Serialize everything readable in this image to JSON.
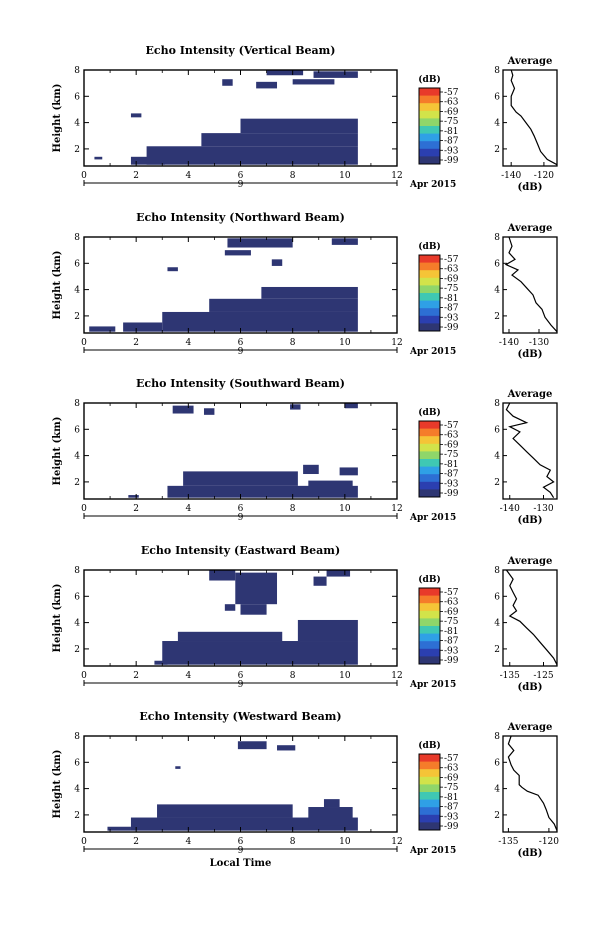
{
  "chart_data": [
    {
      "type": "heatmap",
      "title": "Echo Intensity (Vertical Beam)",
      "ylabel": "Height (km)",
      "x_ticks": [
        "0",
        "2",
        "4",
        "6",
        "8",
        "10",
        "12"
      ],
      "y_ticks": [
        "2",
        "4",
        "6",
        "8"
      ],
      "date_tick": "9",
      "date_label": "Apr 2015",
      "xlim": [
        0,
        12
      ],
      "ylim": [
        0.7,
        8.0
      ],
      "colorbar": {
        "title": "(dB)",
        "ticks": [
          "-57",
          "-63",
          "-69",
          "-75",
          "-81",
          "-87",
          "-93",
          "-99"
        ]
      },
      "cells": [
        {
          "x": [
            0.4,
            0.7
          ],
          "y": [
            1.2,
            1.4
          ]
        },
        {
          "x": [
            1.8,
            3.1
          ],
          "y": [
            0.8,
            1.4
          ]
        },
        {
          "x": [
            2.4,
            10.5
          ],
          "y": [
            0.8,
            2.2
          ]
        },
        {
          "x": [
            4.5,
            10.5
          ],
          "y": [
            2.2,
            3.2
          ]
        },
        {
          "x": [
            6.0,
            10.5
          ],
          "y": [
            3.2,
            4.3
          ]
        },
        {
          "x": [
            1.8,
            2.2
          ],
          "y": [
            4.4,
            4.7
          ]
        },
        {
          "x": [
            5.3,
            5.7
          ],
          "y": [
            6.8,
            7.3
          ]
        },
        {
          "x": [
            6.6,
            7.4
          ],
          "y": [
            6.6,
            7.1
          ]
        },
        {
          "x": [
            7.0,
            8.4
          ],
          "y": [
            7.6,
            8.0
          ]
        },
        {
          "x": [
            8.8,
            10.5
          ],
          "y": [
            7.4,
            7.9
          ]
        },
        {
          "x": [
            8.0,
            9.6
          ],
          "y": [
            6.9,
            7.3
          ]
        }
      ],
      "average": {
        "title": "Average",
        "xlabel": "(dB)",
        "x_ticks": [
          -140,
          -120
        ],
        "y_ticks": [
          2,
          4,
          6,
          8
        ],
        "xlim": [
          -145,
          -112
        ],
        "ylim": [
          0.7,
          8.0
        ],
        "points": [
          [
            -112,
            0.8
          ],
          [
            -118,
            1.2
          ],
          [
            -122,
            1.8
          ],
          [
            -124,
            2.4
          ],
          [
            -126,
            3.0
          ],
          [
            -128,
            3.5
          ],
          [
            -131,
            4.0
          ],
          [
            -134,
            4.5
          ],
          [
            -137,
            4.8
          ],
          [
            -140,
            5.3
          ],
          [
            -140,
            6.0
          ],
          [
            -138,
            6.6
          ],
          [
            -140,
            7.2
          ],
          [
            -139,
            7.6
          ],
          [
            -140,
            8.0
          ]
        ]
      }
    },
    {
      "type": "heatmap",
      "title": "Echo Intensity (Northward Beam)",
      "ylabel": "Height (km)",
      "x_ticks": [
        "0",
        "2",
        "4",
        "6",
        "8",
        "10",
        "12"
      ],
      "y_ticks": [
        "2",
        "4",
        "6",
        "8"
      ],
      "date_tick": "9",
      "date_label": "Apr 2015",
      "xlim": [
        0,
        12
      ],
      "ylim": [
        0.7,
        8.0
      ],
      "colorbar": {
        "title": "(dB)",
        "ticks": [
          "-57",
          "-63",
          "-69",
          "-75",
          "-81",
          "-87",
          "-93",
          "-99"
        ]
      },
      "cells": [
        {
          "x": [
            0.2,
            1.2
          ],
          "y": [
            0.8,
            1.2
          ]
        },
        {
          "x": [
            1.5,
            3.0
          ],
          "y": [
            0.8,
            1.5
          ]
        },
        {
          "x": [
            3.0,
            10.5
          ],
          "y": [
            0.8,
            2.3
          ]
        },
        {
          "x": [
            4.8,
            10.5
          ],
          "y": [
            2.3,
            3.3
          ]
        },
        {
          "x": [
            6.8,
            10.5
          ],
          "y": [
            3.3,
            4.2
          ]
        },
        {
          "x": [
            3.2,
            3.6
          ],
          "y": [
            5.4,
            5.7
          ]
        },
        {
          "x": [
            5.5,
            8.0
          ],
          "y": [
            7.2,
            7.9
          ]
        },
        {
          "x": [
            5.4,
            6.4
          ],
          "y": [
            6.6,
            7.0
          ]
        },
        {
          "x": [
            7.2,
            7.6
          ],
          "y": [
            5.8,
            6.3
          ]
        },
        {
          "x": [
            9.5,
            10.5
          ],
          "y": [
            7.4,
            7.9
          ]
        }
      ],
      "average": {
        "title": "Average",
        "xlabel": "(dB)",
        "x_ticks": [
          -140,
          -130
        ],
        "y_ticks": [
          2,
          4,
          6,
          8
        ],
        "xlim": [
          -142,
          -124
        ],
        "ylim": [
          0.7,
          8.0
        ],
        "points": [
          [
            -124,
            0.8
          ],
          [
            -126,
            1.3
          ],
          [
            -128,
            1.9
          ],
          [
            -129,
            2.5
          ],
          [
            -131,
            3.0
          ],
          [
            -132,
            3.6
          ],
          [
            -134,
            4.1
          ],
          [
            -136,
            4.6
          ],
          [
            -139,
            5.1
          ],
          [
            -137,
            5.5
          ],
          [
            -141,
            5.9
          ],
          [
            -138,
            6.3
          ],
          [
            -140,
            6.8
          ],
          [
            -139,
            7.3
          ],
          [
            -140,
            8.0
          ]
        ]
      }
    },
    {
      "type": "heatmap",
      "title": "Echo Intensity (Southward Beam)",
      "ylabel": "Height (km)",
      "x_ticks": [
        "0",
        "2",
        "4",
        "6",
        "8",
        "10",
        "12"
      ],
      "y_ticks": [
        "2",
        "4",
        "6",
        "8"
      ],
      "date_tick": "9",
      "date_label": "Apr 2015",
      "xlim": [
        0,
        12
      ],
      "ylim": [
        0.7,
        8.0
      ],
      "colorbar": {
        "title": "(dB)",
        "ticks": [
          "-57",
          "-63",
          "-69",
          "-75",
          "-81",
          "-87",
          "-93",
          "-99"
        ]
      },
      "cells": [
        {
          "x": [
            1.7,
            2.1
          ],
          "y": [
            0.8,
            1.0
          ]
        },
        {
          "x": [
            3.2,
            10.5
          ],
          "y": [
            0.8,
            1.7
          ]
        },
        {
          "x": [
            3.8,
            8.2
          ],
          "y": [
            1.7,
            2.8
          ]
        },
        {
          "x": [
            8.6,
            10.3
          ],
          "y": [
            1.2,
            2.1
          ]
        },
        {
          "x": [
            8.4,
            9.0
          ],
          "y": [
            2.6,
            3.3
          ]
        },
        {
          "x": [
            9.8,
            10.5
          ],
          "y": [
            2.5,
            3.1
          ]
        },
        {
          "x": [
            3.4,
            4.2
          ],
          "y": [
            7.2,
            7.8
          ]
        },
        {
          "x": [
            4.6,
            5.0
          ],
          "y": [
            7.1,
            7.6
          ]
        },
        {
          "x": [
            7.9,
            8.3
          ],
          "y": [
            7.5,
            7.9
          ]
        },
        {
          "x": [
            10.0,
            10.5
          ],
          "y": [
            7.6,
            8.0
          ]
        }
      ],
      "average": {
        "title": "Average",
        "xlabel": "(dB)",
        "x_ticks": [
          -140,
          -130
        ],
        "y_ticks": [
          2,
          4,
          6,
          8
        ],
        "xlim": [
          -142,
          -126
        ],
        "ylim": [
          0.7,
          8.0
        ],
        "points": [
          [
            -127,
            0.8
          ],
          [
            -128,
            1.2
          ],
          [
            -130,
            1.6
          ],
          [
            -127,
            2.0
          ],
          [
            -129,
            2.4
          ],
          [
            -128,
            2.9
          ],
          [
            -131,
            3.3
          ],
          [
            -133,
            3.8
          ],
          [
            -135,
            4.3
          ],
          [
            -137,
            4.8
          ],
          [
            -139,
            5.3
          ],
          [
            -137,
            5.8
          ],
          [
            -140,
            6.2
          ],
          [
            -135,
            6.5
          ],
          [
            -139,
            7.0
          ],
          [
            -141,
            7.5
          ],
          [
            -140,
            8.0
          ]
        ]
      }
    },
    {
      "type": "heatmap",
      "title": "Echo Intensity (Eastward Beam)",
      "ylabel": "Height (km)",
      "x_ticks": [
        "0",
        "2",
        "4",
        "6",
        "8",
        "10",
        "12"
      ],
      "y_ticks": [
        "2",
        "4",
        "6",
        "8"
      ],
      "date_tick": "9",
      "date_label": "Apr 2015",
      "xlim": [
        0,
        12
      ],
      "ylim": [
        0.7,
        8.0
      ],
      "colorbar": {
        "title": "(dB)",
        "ticks": [
          "-57",
          "-63",
          "-69",
          "-75",
          "-81",
          "-87",
          "-93",
          "-99"
        ]
      },
      "cells": [
        {
          "x": [
            2.7,
            3.2
          ],
          "y": [
            0.8,
            1.1
          ]
        },
        {
          "x": [
            3.0,
            10.5
          ],
          "y": [
            0.8,
            2.6
          ]
        },
        {
          "x": [
            3.6,
            7.6
          ],
          "y": [
            2.6,
            3.3
          ]
        },
        {
          "x": [
            8.2,
            10.5
          ],
          "y": [
            2.6,
            4.2
          ]
        },
        {
          "x": [
            4.8,
            5.8
          ],
          "y": [
            7.2,
            8.0
          ]
        },
        {
          "x": [
            5.8,
            7.4
          ],
          "y": [
            5.4,
            7.8
          ]
        },
        {
          "x": [
            6.0,
            7.0
          ],
          "y": [
            4.6,
            5.4
          ]
        },
        {
          "x": [
            8.8,
            9.3
          ],
          "y": [
            6.8,
            7.5
          ]
        },
        {
          "x": [
            9.3,
            10.2
          ],
          "y": [
            7.5,
            8.0
          ]
        },
        {
          "x": [
            5.4,
            5.8
          ],
          "y": [
            4.9,
            5.4
          ]
        }
      ],
      "average": {
        "title": "Average",
        "xlabel": "(dB)",
        "x_ticks": [
          -135,
          -125
        ],
        "y_ticks": [
          2,
          4,
          6,
          8
        ],
        "xlim": [
          -137,
          -121
        ],
        "ylim": [
          0.7,
          8.0
        ],
        "points": [
          [
            -121,
            0.8
          ],
          [
            -122,
            1.3
          ],
          [
            -124,
            1.9
          ],
          [
            -126,
            2.5
          ],
          [
            -128,
            3.1
          ],
          [
            -130,
            3.6
          ],
          [
            -132,
            4.1
          ],
          [
            -135,
            4.5
          ],
          [
            -133,
            4.9
          ],
          [
            -134,
            5.3
          ],
          [
            -133,
            5.8
          ],
          [
            -134,
            6.3
          ],
          [
            -135,
            6.8
          ],
          [
            -134,
            7.3
          ],
          [
            -136,
            8.0
          ]
        ]
      }
    },
    {
      "type": "heatmap",
      "title": "Echo Intensity (Westward Beam)",
      "ylabel": "Height (km)",
      "xlabel": "Local Time",
      "x_ticks": [
        "0",
        "2",
        "4",
        "6",
        "8",
        "10",
        "12"
      ],
      "y_ticks": [
        "2",
        "4",
        "6",
        "8"
      ],
      "date_tick": "9",
      "date_label": "Apr 2015",
      "xlim": [
        0,
        12
      ],
      "ylim": [
        0.7,
        8.0
      ],
      "colorbar": {
        "title": "(dB)",
        "ticks": [
          "-57",
          "-63",
          "-69",
          "-75",
          "-81",
          "-87",
          "-93",
          "-99"
        ]
      },
      "cells": [
        {
          "x": [
            0.9,
            1.8
          ],
          "y": [
            0.8,
            1.1
          ]
        },
        {
          "x": [
            1.8,
            10.5
          ],
          "y": [
            0.8,
            1.8
          ]
        },
        {
          "x": [
            2.8,
            8.0
          ],
          "y": [
            1.8,
            2.8
          ]
        },
        {
          "x": [
            8.6,
            10.3
          ],
          "y": [
            1.2,
            2.6
          ]
        },
        {
          "x": [
            9.2,
            9.8
          ],
          "y": [
            2.6,
            3.2
          ]
        },
        {
          "x": [
            5.9,
            7.0
          ],
          "y": [
            7.0,
            7.6
          ]
        },
        {
          "x": [
            7.4,
            8.1
          ],
          "y": [
            6.9,
            7.3
          ]
        },
        {
          "x": [
            3.5,
            3.7
          ],
          "y": [
            5.5,
            5.7
          ]
        }
      ],
      "average": {
        "title": "Average",
        "xlabel": "(dB)",
        "x_ticks": [
          -135,
          -120
        ],
        "y_ticks": [
          2,
          4,
          6,
          8
        ],
        "xlim": [
          -137,
          -117
        ],
        "ylim": [
          0.7,
          8.0
        ],
        "points": [
          [
            -117,
            0.8
          ],
          [
            -118,
            1.3
          ],
          [
            -120,
            1.8
          ],
          [
            -121,
            2.4
          ],
          [
            -122,
            2.9
          ],
          [
            -124,
            3.5
          ],
          [
            -128,
            3.8
          ],
          [
            -130,
            4.1
          ],
          [
            -131,
            4.3
          ],
          [
            -131,
            5.0
          ],
          [
            -133,
            5.4
          ],
          [
            -134,
            5.8
          ],
          [
            -135,
            6.4
          ],
          [
            -133,
            6.9
          ],
          [
            -135,
            7.4
          ],
          [
            -134,
            8.0
          ]
        ]
      }
    }
  ],
  "colors": {
    "echo": "#2e3673",
    "colorbar": [
      "#e83a2a",
      "#f57c2a",
      "#f5c437",
      "#d2e34a",
      "#8fd66a",
      "#3fc8b3",
      "#2fa0e6",
      "#2d6fd4",
      "#2b3fb0",
      "#2e3673"
    ]
  }
}
